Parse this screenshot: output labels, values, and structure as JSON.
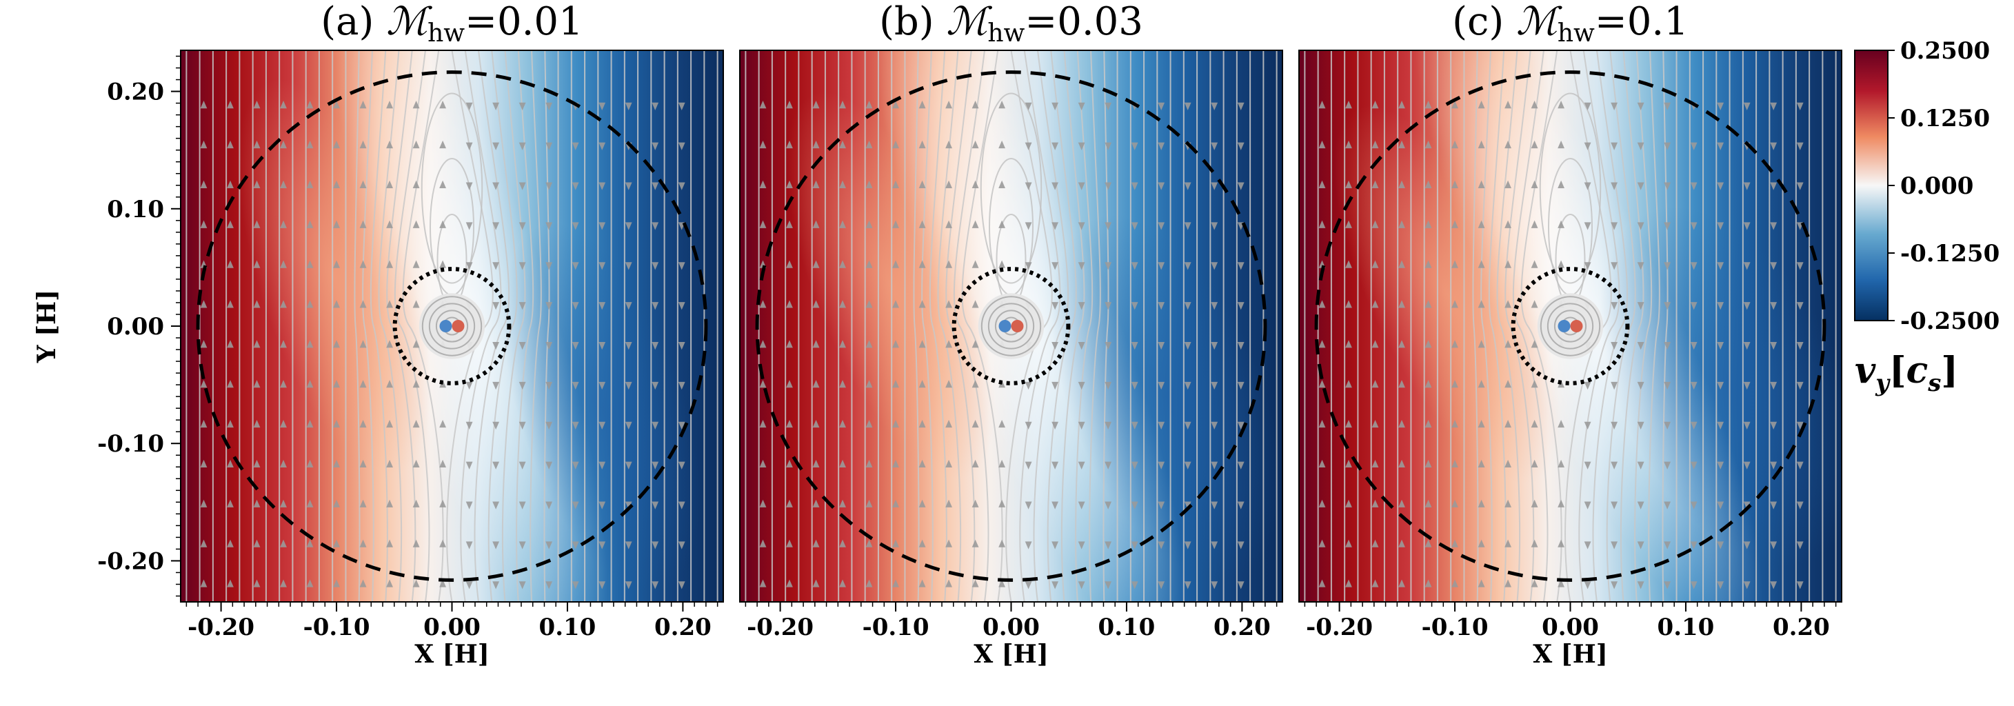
{
  "chart_data": {
    "type": "heatmap",
    "figure": "Gas velocity field v_y around a planet with streamlines for three headwind Mach numbers",
    "panels": [
      {
        "id": "a",
        "title_prefix": "(a) ",
        "title_symbol": "ℳ",
        "title_subscript": "hw",
        "title_value": "=0.01",
        "mach": 0.01
      },
      {
        "id": "b",
        "title_prefix": "(b) ",
        "title_symbol": "ℳ",
        "title_subscript": "hw",
        "title_value": "=0.03",
        "mach": 0.03
      },
      {
        "id": "c",
        "title_prefix": "(c) ",
        "title_symbol": "ℳ",
        "title_subscript": "hw",
        "title_value": "=0.1",
        "mach": 0.1
      }
    ],
    "xlabel": "X [H]",
    "ylabel": "Y [H]",
    "xlim": [
      -0.235,
      0.235
    ],
    "ylim": [
      -0.235,
      0.235
    ],
    "xticks": [
      -0.2,
      -0.1,
      0.0,
      0.1,
      0.2
    ],
    "xtick_labels": [
      "-0.20",
      "-0.10",
      "0.00",
      "0.10",
      "0.20"
    ],
    "yticks": [
      0.2,
      0.1,
      0.0,
      -0.1,
      -0.2
    ],
    "ytick_labels": [
      "0.20",
      "0.10",
      "0.00",
      "-0.10",
      "-0.20"
    ],
    "dashed_circle_radius": 0.22,
    "dotted_circle_radius": 0.03,
    "colorbar": {
      "label_main": "v",
      "label_sub": "y",
      "label_unit_main": "c",
      "label_unit_sub": "s",
      "min": -0.25,
      "max": 0.25,
      "ticks": [
        0.25,
        0.125,
        0.0,
        -0.125,
        -0.25
      ],
      "tick_labels": [
        "0.2500",
        "0.1250",
        "0.000",
        "-0.1250",
        "-0.2500"
      ],
      "colormap": "RdBu_r",
      "color_max": "#67001f",
      "color_mid": "#f7f7f7",
      "color_min": "#053061"
    }
  }
}
